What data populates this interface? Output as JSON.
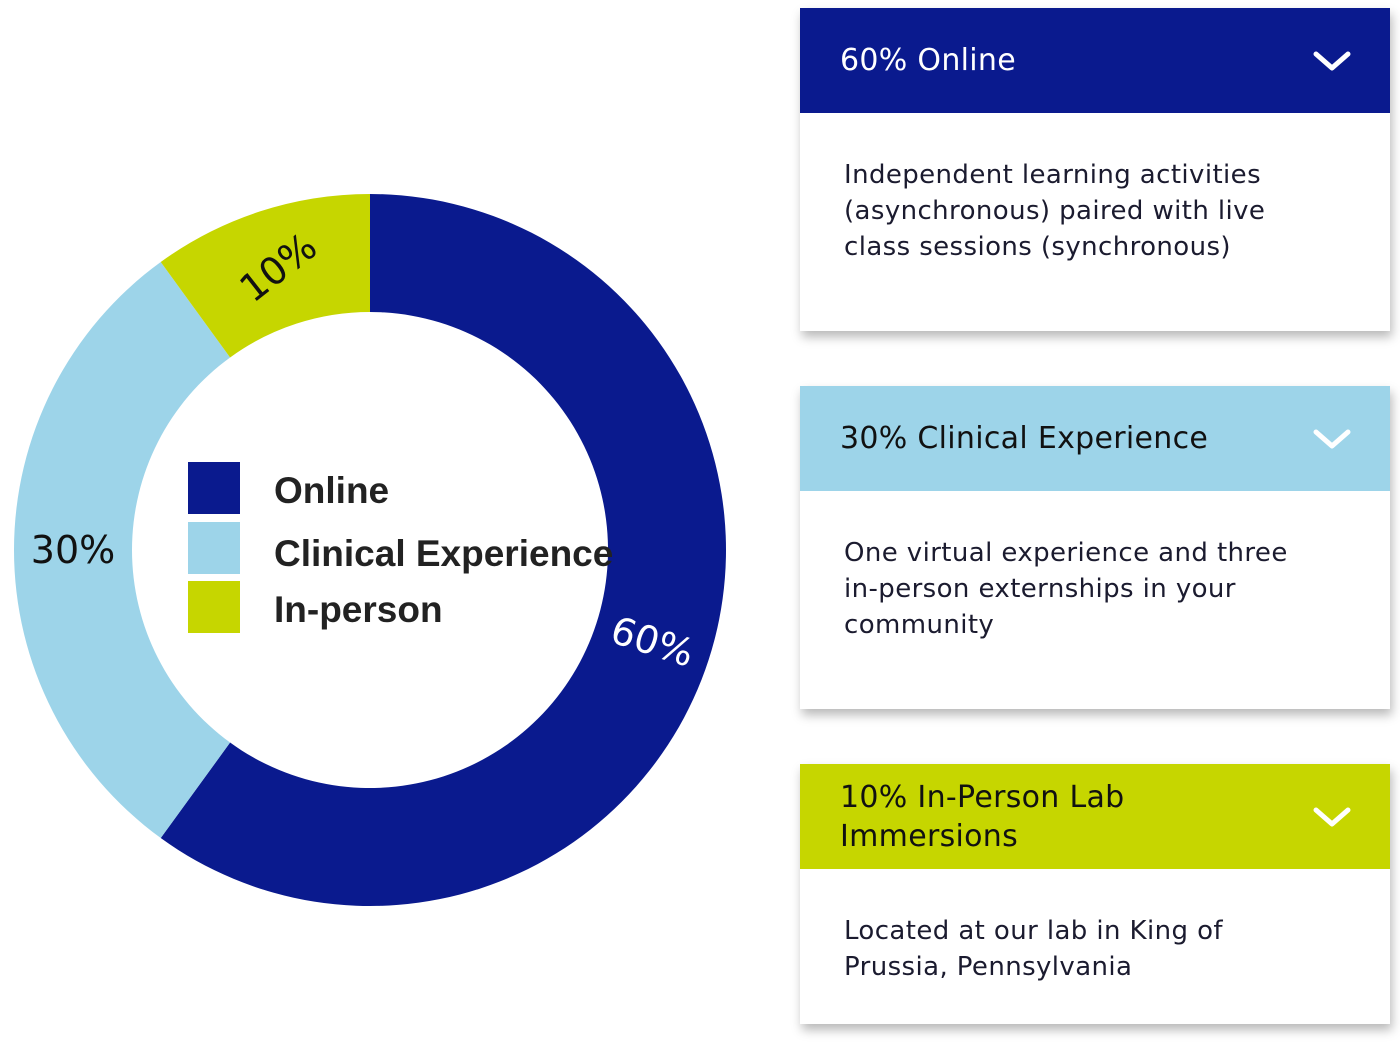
{
  "chart_data": {
    "type": "pie",
    "style": "donut",
    "categories": [
      "Online",
      "Clinical Experience",
      "In-person"
    ],
    "values": [
      60,
      30,
      10
    ],
    "value_labels": [
      "60%",
      "30%",
      "10%"
    ],
    "colors": [
      "#0a1a8e",
      "#9dd4e9",
      "#c6d600"
    ],
    "label_colors": [
      "#ffffff",
      "#111111",
      "#111111"
    ],
    "legend": {
      "placement": "center",
      "items": [
        {
          "label": "Online",
          "color": "#0a1a8e"
        },
        {
          "label": "Clinical Experience",
          "color": "#9dd4e9"
        },
        {
          "label": "In-person",
          "color": "#c6d600"
        }
      ]
    }
  },
  "cards": [
    {
      "title": "60% Online",
      "description": "Independent learning activities (asynchronous) paired with live class sessions (synchronous)",
      "header_color": "#0a1a8e",
      "chevron_icon": "chevron-down-icon"
    },
    {
      "title": "30% Clinical Experience",
      "description": "One virtual experience and three in-person externships in your community",
      "header_color": "#9dd4e9",
      "chevron_icon": "chevron-down-icon"
    },
    {
      "title": "10% In-Person Lab Immersions",
      "description": "Located at our lab in King of Prussia, Pennsylvania",
      "header_color": "#c6d600",
      "chevron_icon": "chevron-down-icon"
    }
  ]
}
